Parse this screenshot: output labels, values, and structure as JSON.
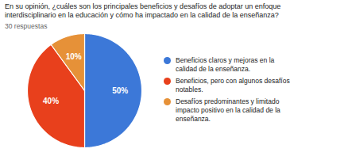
{
  "chart_data": {
    "type": "pie",
    "title": "En su opinión, ¿cuáles son los principales beneficios y desafíos de adoptar un enfoque\ninterdisciplinario en la educación y cómo ha impactado en la calidad de la enseñanza?",
    "subtitle": "30 respuestas",
    "categories": [
      "Beneficios claros y mejoras en la\ncalidad de la enseñanza.",
      "Beneficios, pero con algunos desafíos\nnotables.",
      "Desafíos predominantes y limitado\nimpacto positivo en la calidad de la\nenseñanza."
    ],
    "values": [
      50,
      40,
      10
    ],
    "value_labels": [
      "50%",
      "40%",
      "10%"
    ],
    "colors": [
      "#3c78d8",
      "#e8401c",
      "#e69138"
    ],
    "data_labels": true,
    "legend": "right"
  }
}
